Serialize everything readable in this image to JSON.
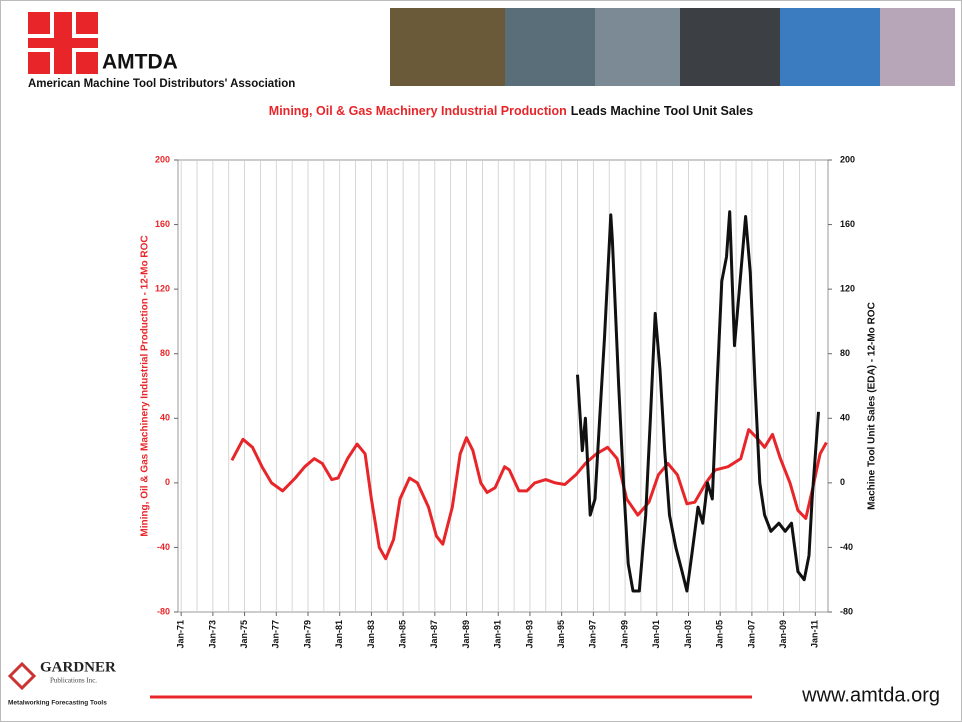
{
  "header": {
    "logo": "AMTDA",
    "org": "American Machine Tool Distributors' Association"
  },
  "footer": {
    "brand": "GARDNER",
    "sub": "Publications Inc.",
    "tagline": "Metalworking Forecasting Tools",
    "url": "www.amtda.org"
  },
  "chart_data": {
    "type": "line",
    "title": [
      {
        "text": "Mining, Oil & Gas Machinery Industrial Production",
        "color": "#e8262a"
      },
      {
        "text": "Leads Machine Tool Unit Sales",
        "color": "#111111"
      }
    ],
    "ylabel": "Mining, Oil & Gas Machinery Industrial Production - 12-Mo ROC",
    "y2label": "Machine Tool Unit Sales (EDA) - 12-Mo ROC",
    "xlim": [
      1970.8,
      2011.8
    ],
    "xticks": [
      {
        "value": 1971,
        "label": "Jan-71"
      },
      {
        "value": 1973,
        "label": "Jan-73"
      },
      {
        "value": 1975,
        "label": "Jan-75"
      },
      {
        "value": 1977,
        "label": "Jan-77"
      },
      {
        "value": 1979,
        "label": "Jan-79"
      },
      {
        "value": 1981,
        "label": "Jan-81"
      },
      {
        "value": 1983,
        "label": "Jan-83"
      },
      {
        "value": 1985,
        "label": "Jan-85"
      },
      {
        "value": 1987,
        "label": "Jan-87"
      },
      {
        "value": 1989,
        "label": "Jan-89"
      },
      {
        "value": 1991,
        "label": "Jan-91"
      },
      {
        "value": 1993,
        "label": "Jan-93"
      },
      {
        "value": 1995,
        "label": "Jan-95"
      },
      {
        "value": 1997,
        "label": "Jan-97"
      },
      {
        "value": 1999,
        "label": "Jan-99"
      },
      {
        "value": 2001,
        "label": "Jan-01"
      },
      {
        "value": 2003,
        "label": "Jan-03"
      },
      {
        "value": 2005,
        "label": "Jan-05"
      },
      {
        "value": 2007,
        "label": "Jan-07"
      },
      {
        "value": 2009,
        "label": "Jan-09"
      },
      {
        "value": 2011,
        "label": "Jan-11"
      }
    ],
    "xminor": [
      1972,
      1974,
      1976,
      1978,
      1980,
      1982,
      1984,
      1986,
      1988,
      1990,
      1992,
      1994,
      1996,
      1998,
      2000,
      2002,
      2004,
      2006,
      2008,
      2010
    ],
    "ylim": [
      -80,
      200
    ],
    "yticks": [
      -80,
      -40,
      0,
      40,
      80,
      120,
      160,
      200
    ],
    "y2lim": [
      -80,
      200
    ],
    "y2ticks": [
      -80,
      -40,
      0,
      40,
      80,
      120,
      160,
      200
    ],
    "grid": true,
    "series": [
      {
        "color": "#e8262a",
        "axis": "y",
        "x": [
          1974.2,
          1974.9,
          1975.5,
          1976.1,
          1976.7,
          1977.4,
          1978.2,
          1978.8,
          1979.4,
          1979.9,
          1980.5,
          1980.9,
          1981.5,
          1982.1,
          1982.6,
          1983.0,
          1983.5,
          1983.9,
          1984.4,
          1984.8,
          1985.4,
          1985.9,
          1986.6,
          1987.1,
          1987.5,
          1988.1,
          1988.6,
          1989.0,
          1989.4,
          1989.9,
          1990.3,
          1990.8,
          1991.4,
          1991.7,
          1992.3,
          1992.8,
          1993.3,
          1994.0,
          1994.6,
          1995.2,
          1995.9,
          1996.5,
          1997.2,
          1997.9,
          1998.5,
          1999.1,
          1999.8,
          2000.5,
          2001.1,
          2001.7,
          2002.3,
          2002.9,
          2003.4,
          2004.1,
          2004.7,
          2005.5,
          2006.3,
          2006.8,
          2007.3,
          2007.8,
          2008.3,
          2008.8,
          2009.4,
          2009.9,
          2010.4,
          2010.8,
          2011.3,
          2011.7
        ],
        "values": [
          14,
          27,
          22,
          10,
          0,
          -5,
          3,
          10,
          15,
          12,
          2,
          3,
          15,
          24,
          18,
          -10,
          -40,
          -47,
          -35,
          -10,
          3,
          0,
          -15,
          -33,
          -38,
          -15,
          18,
          28,
          20,
          0,
          -6,
          -3,
          10,
          8,
          -5,
          -5,
          0,
          2,
          0,
          -1,
          5,
          12,
          18,
          22,
          15,
          -10,
          -20,
          -12,
          5,
          12,
          5,
          -13,
          -12,
          0,
          8,
          10,
          15,
          33,
          28,
          22,
          30,
          15,
          0,
          -17,
          -22,
          -5,
          18,
          25
        ]
      },
      {
        "color": "#111111",
        "axis": "y2",
        "x": [
          1996.0,
          1996.3,
          1996.5,
          1996.8,
          1997.1,
          1997.4,
          1997.7,
          1998.1,
          1998.2,
          1998.6,
          1998.9,
          1999.2,
          1999.5,
          1999.9,
          2000.3,
          2000.6,
          2000.9,
          2001.2,
          2001.5,
          2001.8,
          2002.2,
          2002.6,
          2002.9,
          2003.2,
          2003.6,
          2003.9,
          2004.2,
          2004.5,
          2004.8,
          2005.1,
          2005.4,
          2005.6,
          2005.9,
          2006.3,
          2006.6,
          2006.9,
          2007.2,
          2007.5,
          2007.8,
          2008.2,
          2008.7,
          2009.1,
          2009.5,
          2009.9,
          2010.3,
          2010.6,
          2010.8,
          2011.2
        ],
        "values": [
          67,
          20,
          40,
          -20,
          -10,
          40,
          90,
          166,
          150,
          60,
          0,
          -50,
          -67,
          -67,
          -20,
          40,
          105,
          70,
          20,
          -20,
          -40,
          -55,
          -67,
          -45,
          -15,
          -25,
          0,
          -10,
          60,
          125,
          140,
          168,
          85,
          130,
          165,
          130,
          60,
          0,
          -20,
          -30,
          -25,
          -30,
          -25,
          -55,
          -60,
          -45,
          -10,
          44
        ]
      }
    ]
  }
}
